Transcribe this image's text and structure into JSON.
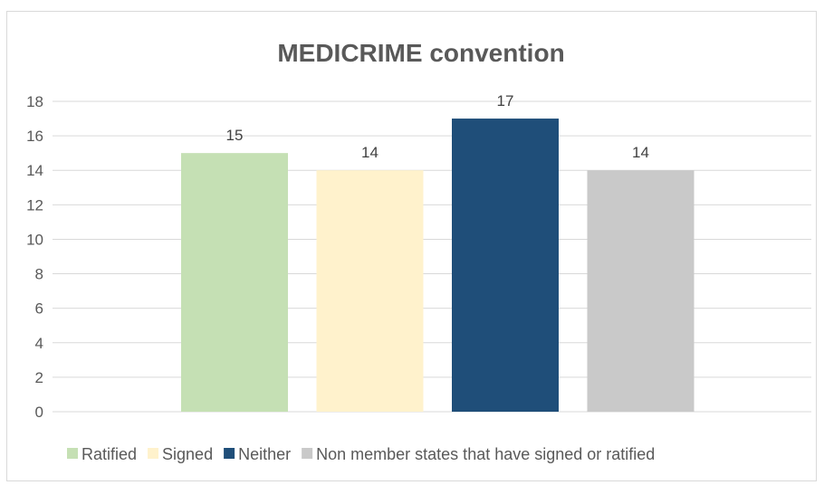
{
  "chart_data": {
    "type": "bar",
    "title": "MEDICRIME convention",
    "xlabel": "",
    "ylabel": "",
    "ylim": [
      0,
      18
    ],
    "yticks": [
      0,
      2,
      4,
      6,
      8,
      10,
      12,
      14,
      16,
      18
    ],
    "grid": true,
    "legend_position": "bottom",
    "series": [
      {
        "name": "Ratified",
        "value": 15,
        "color": "#c5e0b4"
      },
      {
        "name": "Signed",
        "value": 14,
        "color": "#fff2cc"
      },
      {
        "name": "Neither",
        "value": 17,
        "color": "#1f4e79"
      },
      {
        "name": "Non member states that have signed or ratified",
        "value": 14,
        "color": "#c9c9c9"
      }
    ]
  }
}
